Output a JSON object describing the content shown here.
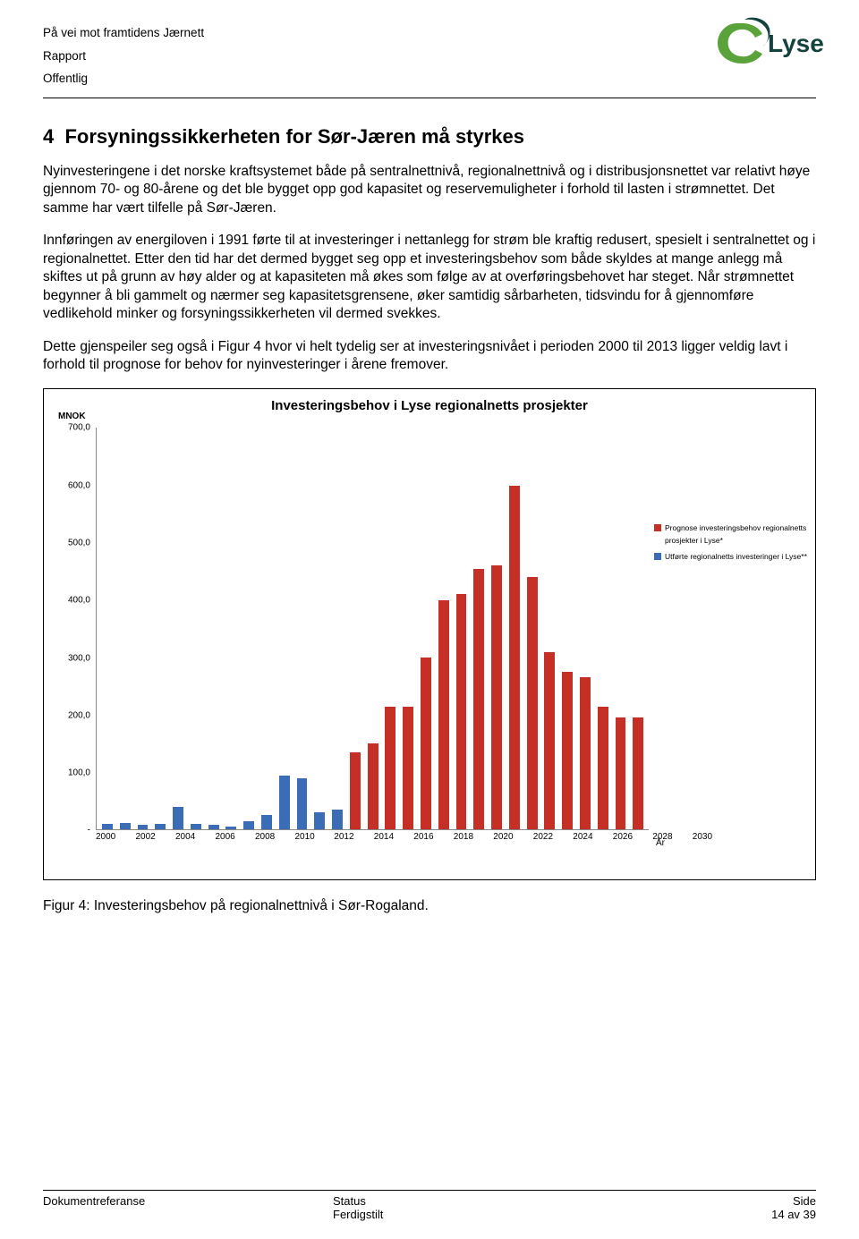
{
  "header": {
    "line1": "På vei mot  framtidens Jærnett",
    "line2": "Rapport",
    "line3": "Offentlig",
    "logo_text": "Lyse",
    "logo_green": "#5aa23a",
    "logo_dark": "#14423c"
  },
  "section": {
    "number": "4",
    "title": "Forsyningssikkerheten for Sør-Jæren må styrkes"
  },
  "paragraphs": {
    "p1": "Nyinvesteringene i det norske kraftsystemet både på sentralnettnivå, regionalnettnivå og i distribusjonsnettet var relativt høye gjennom 70- og 80-årene og det ble bygget opp god kapasitet og reservemuligheter i forhold til lasten i strømnettet. Det samme har vært tilfelle på Sør-Jæren.",
    "p2": "Innføringen av energiloven i 1991 førte til at investeringer i nettanlegg for strøm ble kraftig redusert, spesielt i sentralnettet og i regionalnettet. Etter den tid har det dermed bygget seg opp et investeringsbehov som både skyldes at mange anlegg må skiftes ut på grunn av høy alder og at kapasiteten må økes som følge av at overføringsbehovet har steget. Når strømnettet begynner å bli gammelt og nærmer seg kapasitetsgrensene, øker samtidig sårbarheten, tidsvindu for å gjennomføre vedlikehold minker og forsyningssikkerheten vil dermed svekkes.",
    "p3": "Dette gjenspeiler seg også i Figur 4 hvor vi helt tydelig ser at investeringsnivået i perioden 2000 til 2013 ligger veldig lavt i forhold til prognose for behov for nyinvesteringer i årene fremover."
  },
  "chart": {
    "title": "Investeringsbehov i Lyse regionalnetts prosjekter",
    "y_unit": "MNOK",
    "x_unit": "År",
    "ylim": [
      0,
      700
    ],
    "yticks": [
      "700,0",
      "600,0",
      "500,0",
      "400,0",
      "300,0",
      "200,0",
      "100,0",
      "-"
    ],
    "ytick_vals": [
      700,
      600,
      500,
      400,
      300,
      200,
      100,
      0
    ],
    "x_labels": [
      "2000",
      "2001",
      "2002",
      "2003",
      "2004",
      "2005",
      "2006",
      "2007",
      "2008",
      "2009",
      "2010",
      "2011",
      "2012",
      "2013",
      "2014",
      "2015",
      "2016",
      "2017",
      "2018",
      "2019",
      "2020",
      "2021",
      "2022",
      "2023",
      "2024",
      "2025",
      "2026",
      "2027",
      "2028",
      "2029",
      "2030"
    ],
    "x_show_every": 2,
    "series": [
      {
        "year": "2000",
        "value": 10,
        "color": "#3a6db5"
      },
      {
        "year": "2001",
        "value": 12,
        "color": "#3a6db5"
      },
      {
        "year": "2002",
        "value": 8,
        "color": "#3a6db5"
      },
      {
        "year": "2003",
        "value": 10,
        "color": "#3a6db5"
      },
      {
        "year": "2004",
        "value": 40,
        "color": "#3a6db5"
      },
      {
        "year": "2005",
        "value": 10,
        "color": "#3a6db5"
      },
      {
        "year": "2006",
        "value": 8,
        "color": "#3a6db5"
      },
      {
        "year": "2007",
        "value": 6,
        "color": "#3a6db5"
      },
      {
        "year": "2008",
        "value": 15,
        "color": "#3a6db5"
      },
      {
        "year": "2009",
        "value": 25,
        "color": "#3a6db5"
      },
      {
        "year": "2010",
        "value": 95,
        "color": "#3a6db5"
      },
      {
        "year": "2011",
        "value": 90,
        "color": "#3a6db5"
      },
      {
        "year": "2012",
        "value": 30,
        "color": "#3a6db5"
      },
      {
        "year": "2013",
        "value": 35,
        "color": "#3a6db5"
      },
      {
        "year": "2014",
        "value": 135,
        "color": "#c52f26"
      },
      {
        "year": "2015",
        "value": 150,
        "color": "#c52f26"
      },
      {
        "year": "2016",
        "value": 215,
        "color": "#c52f26"
      },
      {
        "year": "2017",
        "value": 215,
        "color": "#c52f26"
      },
      {
        "year": "2018",
        "value": 300,
        "color": "#c52f26"
      },
      {
        "year": "2019",
        "value": 400,
        "color": "#c52f26"
      },
      {
        "year": "2020",
        "value": 410,
        "color": "#c52f26"
      },
      {
        "year": "2021",
        "value": 455,
        "color": "#c52f26"
      },
      {
        "year": "2022",
        "value": 460,
        "color": "#c52f26"
      },
      {
        "year": "2023",
        "value": 600,
        "color": "#c52f26"
      },
      {
        "year": "2024",
        "value": 440,
        "color": "#c52f26"
      },
      {
        "year": "2025",
        "value": 310,
        "color": "#c52f26"
      },
      {
        "year": "2026",
        "value": 275,
        "color": "#c52f26"
      },
      {
        "year": "2027",
        "value": 265,
        "color": "#c52f26"
      },
      {
        "year": "2028",
        "value": 215,
        "color": "#c52f26"
      },
      {
        "year": "2029",
        "value": 195,
        "color": "#c52f26"
      },
      {
        "year": "2030",
        "value": 195,
        "color": "#c52f26"
      }
    ],
    "legend": {
      "item1": {
        "color": "#c52f26",
        "label": "Prognose investeringsbehov regionalnetts prosjekter i Lyse*"
      },
      "item2": {
        "color": "#3a6db5",
        "label": "Utførte regionalnetts investeringer i Lyse**"
      }
    },
    "plot_bg": "#ffffff",
    "axis_color": "#888888"
  },
  "figure_caption": "Figur 4: Investeringsbehov på regionalnettnivå i Sør-Rogaland.",
  "footer": {
    "docref_label": "Dokumentreferanse",
    "status_label": "Status",
    "status_value": "Ferdigstilt",
    "page_label": "Side",
    "page_value": "14 av 39"
  }
}
